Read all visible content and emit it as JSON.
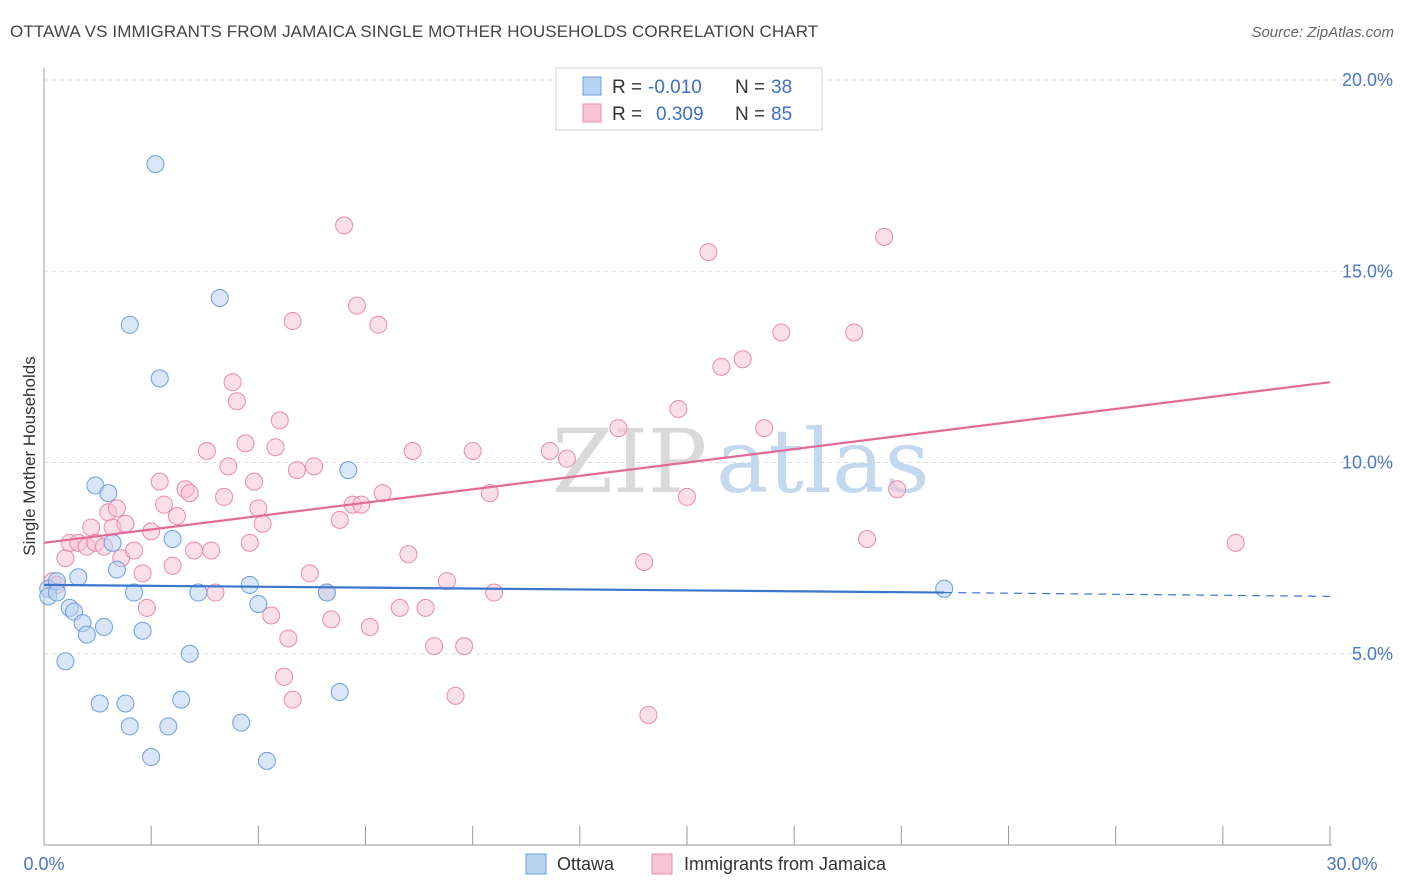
{
  "header": {
    "title": "OTTAWA VS IMMIGRANTS FROM JAMAICA SINGLE MOTHER HOUSEHOLDS CORRELATION CHART",
    "source": "Source: ZipAtlas.com"
  },
  "watermark": {
    "part1": "ZIP",
    "part2": "atlas"
  },
  "colors": {
    "ottawa_fill": "#b8d2f2",
    "ottawa_stroke": "#6f9fdc",
    "ottawa_line": "#3a76cc",
    "jamaica_fill": "#f7c4d5",
    "jamaica_stroke": "#e98bab",
    "jamaica_line": "#e26a96",
    "tick_label": "#4a78c2",
    "grid": "#dddddd"
  },
  "legend": {
    "rows": [
      {
        "r_label": "R =",
        "r_value": "-0.010",
        "n_label": "N =",
        "n_value": "38"
      },
      {
        "r_label": "R =",
        "r_value": "0.309",
        "n_label": "N =",
        "n_value": "85"
      }
    ]
  },
  "chart_data": {
    "type": "scatter",
    "ylabel": "Single Mother Households",
    "xlim": [
      0,
      30
    ],
    "ylim": [
      0,
      20
    ],
    "x_tick_labels": [
      "0.0%",
      "30.0%"
    ],
    "y_ticks": [
      5,
      10,
      15,
      20
    ],
    "y_tick_labels": [
      "5.0%",
      "10.0%",
      "15.0%",
      "20.0%"
    ],
    "grid": true,
    "legend_position": "top-center",
    "series": [
      {
        "name": "Ottawa",
        "r": -0.01,
        "n": 38,
        "trend": {
          "x0": 0,
          "y0": 6.8,
          "x1": 21,
          "y1": 6.6,
          "dashed_to_x": 30,
          "dashed_to_y": 6.5
        },
        "points": [
          [
            0.1,
            6.7
          ],
          [
            0.1,
            6.5
          ],
          [
            0.3,
            6.9
          ],
          [
            0.3,
            6.6
          ],
          [
            0.5,
            4.8
          ],
          [
            0.6,
            6.2
          ],
          [
            0.7,
            6.1
          ],
          [
            0.8,
            7.0
          ],
          [
            0.9,
            5.8
          ],
          [
            1.0,
            5.5
          ],
          [
            1.2,
            9.4
          ],
          [
            1.3,
            3.7
          ],
          [
            1.4,
            5.7
          ],
          [
            1.5,
            9.2
          ],
          [
            1.6,
            7.9
          ],
          [
            1.7,
            7.2
          ],
          [
            1.9,
            3.7
          ],
          [
            2.0,
            3.1
          ],
          [
            2.1,
            6.6
          ],
          [
            2.3,
            5.6
          ],
          [
            2.5,
            2.3
          ],
          [
            2.6,
            17.8
          ],
          [
            2.7,
            12.2
          ],
          [
            2.9,
            3.1
          ],
          [
            3.0,
            8.0
          ],
          [
            3.2,
            3.8
          ],
          [
            3.4,
            5.0
          ],
          [
            3.6,
            6.6
          ],
          [
            4.1,
            14.3
          ],
          [
            4.6,
            3.2
          ],
          [
            4.8,
            6.8
          ],
          [
            5.0,
            6.3
          ],
          [
            5.2,
            2.2
          ],
          [
            6.6,
            6.6
          ],
          [
            6.9,
            4.0
          ],
          [
            7.1,
            9.8
          ],
          [
            2.0,
            13.6
          ],
          [
            21.0,
            6.7
          ]
        ]
      },
      {
        "name": "Immigrants from Jamaica",
        "r": 0.309,
        "n": 85,
        "trend": {
          "x0": 0,
          "y0": 7.9,
          "x1": 30,
          "y1": 12.1
        },
        "points": [
          [
            0.2,
            6.9
          ],
          [
            0.3,
            6.8
          ],
          [
            0.5,
            7.5
          ],
          [
            0.6,
            7.9
          ],
          [
            0.8,
            7.9
          ],
          [
            1.0,
            7.8
          ],
          [
            1.1,
            8.3
          ],
          [
            1.2,
            7.9
          ],
          [
            1.4,
            7.8
          ],
          [
            1.5,
            8.7
          ],
          [
            1.6,
            8.3
          ],
          [
            1.7,
            8.8
          ],
          [
            1.8,
            7.5
          ],
          [
            1.9,
            8.4
          ],
          [
            2.1,
            7.7
          ],
          [
            2.3,
            7.1
          ],
          [
            2.4,
            6.2
          ],
          [
            2.5,
            8.2
          ],
          [
            2.7,
            9.5
          ],
          [
            2.8,
            8.9
          ],
          [
            3.0,
            7.3
          ],
          [
            3.1,
            8.6
          ],
          [
            3.3,
            9.3
          ],
          [
            3.4,
            9.2
          ],
          [
            3.5,
            7.7
          ],
          [
            3.8,
            10.3
          ],
          [
            3.9,
            7.7
          ],
          [
            4.0,
            6.6
          ],
          [
            4.2,
            9.1
          ],
          [
            4.3,
            9.9
          ],
          [
            4.4,
            12.1
          ],
          [
            4.5,
            11.6
          ],
          [
            4.7,
            10.5
          ],
          [
            4.8,
            7.9
          ],
          [
            4.9,
            9.5
          ],
          [
            5.0,
            8.8
          ],
          [
            5.1,
            8.4
          ],
          [
            5.3,
            6.0
          ],
          [
            5.4,
            10.4
          ],
          [
            5.5,
            11.1
          ],
          [
            5.7,
            5.4
          ],
          [
            5.8,
            13.7
          ],
          [
            5.9,
            9.8
          ],
          [
            6.2,
            7.1
          ],
          [
            6.3,
            9.9
          ],
          [
            6.6,
            6.6
          ],
          [
            6.7,
            5.9
          ],
          [
            6.9,
            8.5
          ],
          [
            7.0,
            16.2
          ],
          [
            7.2,
            8.9
          ],
          [
            7.3,
            14.1
          ],
          [
            7.4,
            8.9
          ],
          [
            7.6,
            5.7
          ],
          [
            7.8,
            13.6
          ],
          [
            7.9,
            9.2
          ],
          [
            8.3,
            6.2
          ],
          [
            8.5,
            7.6
          ],
          [
            8.6,
            10.3
          ],
          [
            8.9,
            6.2
          ],
          [
            9.1,
            5.2
          ],
          [
            9.4,
            6.9
          ],
          [
            9.6,
            3.9
          ],
          [
            9.8,
            5.2
          ],
          [
            10.0,
            10.3
          ],
          [
            10.4,
            9.2
          ],
          [
            10.5,
            6.6
          ],
          [
            11.8,
            10.3
          ],
          [
            12.2,
            10.1
          ],
          [
            13.4,
            10.9
          ],
          [
            14.0,
            7.4
          ],
          [
            14.1,
            3.4
          ],
          [
            14.8,
            11.4
          ],
          [
            15.0,
            9.1
          ],
          [
            15.5,
            15.5
          ],
          [
            15.8,
            12.5
          ],
          [
            16.3,
            12.7
          ],
          [
            16.8,
            10.9
          ],
          [
            17.2,
            13.4
          ],
          [
            18.9,
            13.4
          ],
          [
            19.2,
            8.0
          ],
          [
            19.6,
            15.9
          ],
          [
            19.9,
            9.3
          ],
          [
            27.8,
            7.9
          ],
          [
            5.6,
            4.4
          ],
          [
            5.8,
            3.8
          ]
        ]
      }
    ]
  }
}
